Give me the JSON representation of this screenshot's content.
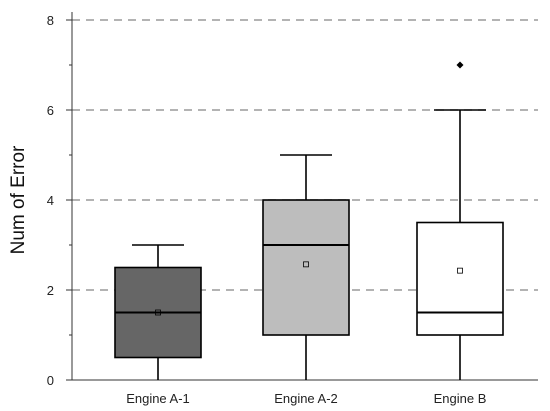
{
  "chart_data": {
    "type": "box",
    "title": "",
    "xlabel": "",
    "ylabel": "Num of Error",
    "ylim": [
      0,
      8
    ],
    "yticks": [
      "0",
      "2",
      "4",
      "6",
      "8"
    ],
    "grid": "horizontal-dashed",
    "categories": [
      "Engine A-1",
      "Engine A-2",
      "Engine B"
    ],
    "boxes": [
      {
        "category": "Engine A-1",
        "min": 0,
        "q1": 0.5,
        "median": 1.5,
        "q3": 2.5,
        "max": 3,
        "mean": 1.5,
        "outliers": [],
        "fill": "#666666"
      },
      {
        "category": "Engine A-2",
        "min": 0,
        "q1": 1,
        "median": 3,
        "q3": 4,
        "max": 5,
        "mean": 2.57,
        "outliers": [],
        "fill": "#bdbdbd"
      },
      {
        "category": "Engine B",
        "min": 0,
        "q1": 1,
        "median": 1.5,
        "q3": 3.5,
        "max": 6,
        "mean": 2.43,
        "outliers": [
          7
        ],
        "fill": "#ffffff"
      }
    ]
  }
}
